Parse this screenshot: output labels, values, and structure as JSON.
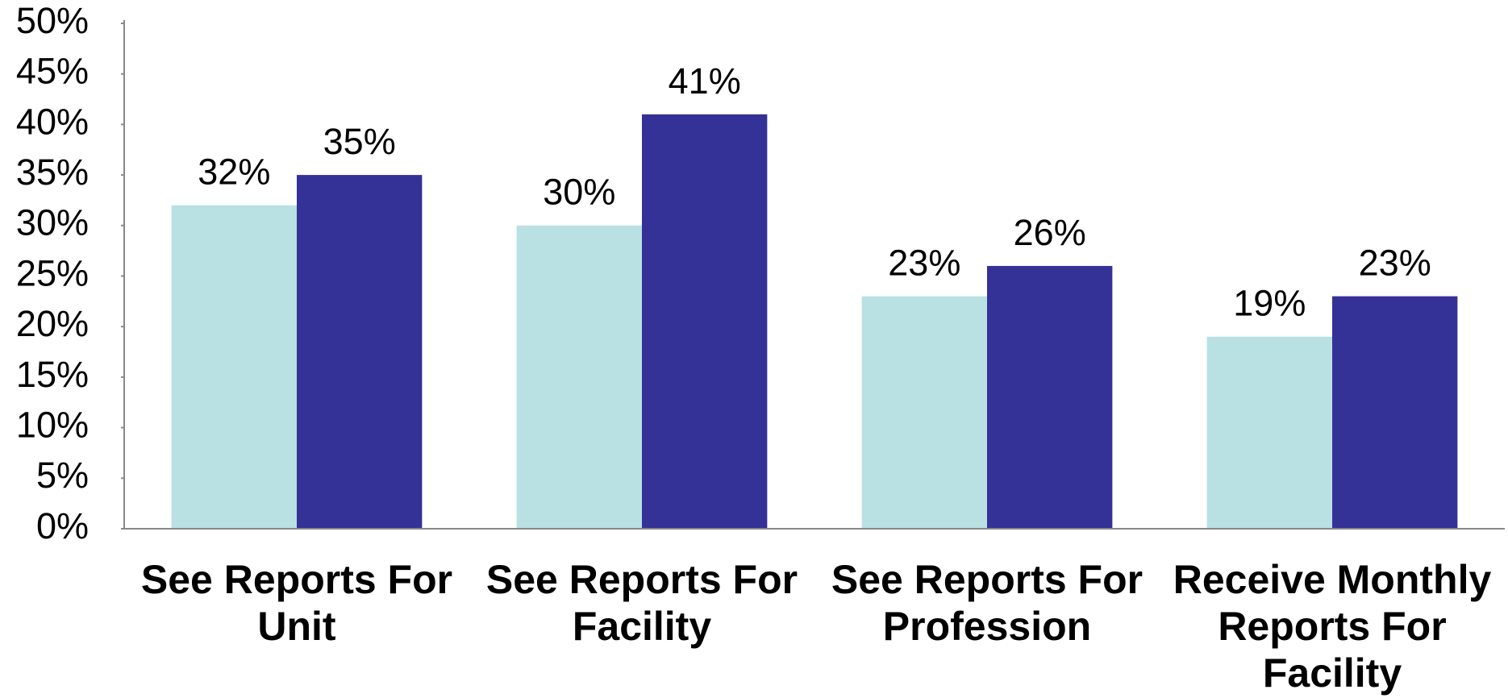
{
  "chart_data": {
    "type": "bar",
    "categories": [
      "See Reports For Unit",
      "See Reports For Facility",
      "See Reports For Profession",
      "Receive Monthly Reports For Facility"
    ],
    "series": [
      {
        "color": "#b9e0e3",
        "values": [
          32,
          30,
          23,
          19
        ],
        "value_labels": [
          "32%",
          "30%",
          "23%",
          "19%"
        ]
      },
      {
        "color": "#343297",
        "values": [
          35,
          41,
          26,
          23
        ],
        "value_labels": [
          "35%",
          "41%",
          "26%",
          "23%"
        ]
      }
    ],
    "ylim": [
      0,
      50
    ],
    "yticks": [
      {
        "value": 0,
        "label": "0%"
      },
      {
        "value": 5,
        "label": "5%"
      },
      {
        "value": 10,
        "label": "10%"
      },
      {
        "value": 15,
        "label": "15%"
      },
      {
        "value": 20,
        "label": "20%"
      },
      {
        "value": 25,
        "label": "25%"
      },
      {
        "value": 30,
        "label": "30%"
      },
      {
        "value": 35,
        "label": "35%"
      },
      {
        "value": 40,
        "label": "40%"
      },
      {
        "value": 45,
        "label": "45%"
      },
      {
        "value": 50,
        "label": "50%"
      }
    ],
    "grid": false
  }
}
